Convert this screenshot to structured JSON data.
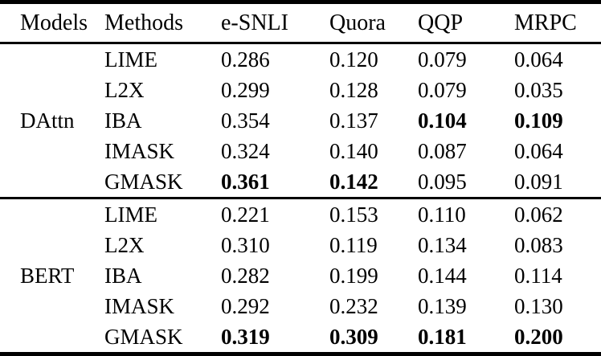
{
  "table": {
    "headers": {
      "models": "Models",
      "methods": "Methods",
      "esnli": "e-SNLI",
      "quora": "Quora",
      "qqp": "QQP",
      "mrpc": "MRPC"
    },
    "groups": [
      {
        "model": "DAttn",
        "rows": [
          {
            "method": "LIME",
            "values": [
              "0.286",
              "0.120",
              "0.079",
              "0.064"
            ]
          },
          {
            "method": "L2X",
            "values": [
              "0.299",
              "0.128",
              "0.079",
              "0.035"
            ]
          },
          {
            "method": "IBA",
            "values": [
              "0.354",
              "0.137",
              "0.104",
              "0.109"
            ]
          },
          {
            "method": "IMASK",
            "values": [
              "0.324",
              "0.140",
              "0.087",
              "0.064"
            ]
          },
          {
            "method": "GMASK",
            "values": [
              "0.361",
              "0.142",
              "0.095",
              "0.091"
            ]
          }
        ]
      },
      {
        "model": "BERT",
        "rows": [
          {
            "method": "LIME",
            "values": [
              "0.221",
              "0.153",
              "0.110",
              "0.062"
            ]
          },
          {
            "method": "L2X",
            "values": [
              "0.310",
              "0.119",
              "0.134",
              "0.083"
            ]
          },
          {
            "method": "IBA",
            "values": [
              "0.282",
              "0.199",
              "0.144",
              "0.114"
            ]
          },
          {
            "method": "IMASK",
            "values": [
              "0.292",
              "0.232",
              "0.139",
              "0.130"
            ]
          },
          {
            "method": "GMASK",
            "values": [
              "0.319",
              "0.309",
              "0.181",
              "0.200"
            ]
          }
        ]
      }
    ],
    "text_color": "#000000",
    "background_color": "#ffffff"
  }
}
